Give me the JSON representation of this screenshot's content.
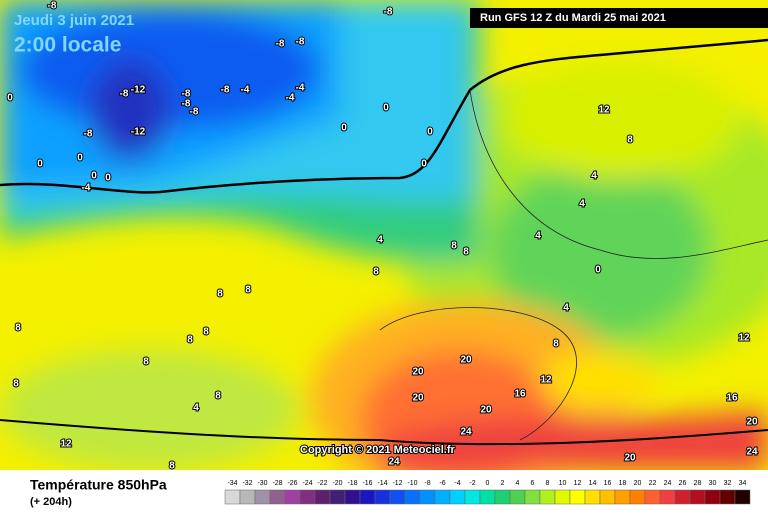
{
  "header": {
    "date": "Jeudi 3 juin 2021",
    "time": "2:00 locale",
    "run": "Run GFS 12 Z du Mardi 25 mai 2021"
  },
  "copyright": "Copyright © 2021 Meteociel.fr",
  "footer": {
    "title": "Température 850hPa",
    "lead": "(+ 204h)"
  },
  "scale": {
    "values": [
      -34,
      -32,
      -30,
      -28,
      -26,
      -24,
      -22,
      -20,
      -18,
      -16,
      -14,
      -12,
      -10,
      -8,
      -6,
      -4,
      -2,
      0,
      2,
      4,
      6,
      8,
      10,
      12,
      14,
      16,
      18,
      20,
      22,
      24,
      26,
      28,
      30,
      32,
      34
    ],
    "colors": [
      "#d8d8d8",
      "#b8b8b8",
      "#a090a8",
      "#906090",
      "#a040a0",
      "#803080",
      "#602070",
      "#402070",
      "#301090",
      "#1818c0",
      "#1830e0",
      "#1050f0",
      "#0870ff",
      "#0090ff",
      "#00b0ff",
      "#00d0ff",
      "#00e8e0",
      "#00e0a0",
      "#20d070",
      "#50d050",
      "#80e040",
      "#b0f020",
      "#e0f800",
      "#ffff00",
      "#ffe000",
      "#ffc000",
      "#ffa000",
      "#ff8000",
      "#ff6030",
      "#f04040",
      "#d02030",
      "#b01020",
      "#900010",
      "#600000",
      "#200000"
    ]
  },
  "contour_labels": [
    -8,
    -8,
    -8,
    -8,
    -8,
    -12,
    -8,
    -8,
    -8,
    -8,
    -4,
    -4,
    -4,
    0,
    -8,
    -12,
    0,
    0,
    0,
    0,
    0,
    0,
    -4,
    0,
    0,
    4,
    8,
    8,
    8,
    12,
    8,
    4,
    4,
    4,
    0,
    4,
    8,
    12,
    16,
    20,
    20,
    20,
    20,
    24,
    24,
    20,
    16,
    20,
    24,
    12,
    12,
    8,
    4,
    8,
    8,
    8,
    8,
    8,
    8,
    8,
    8
  ]
}
